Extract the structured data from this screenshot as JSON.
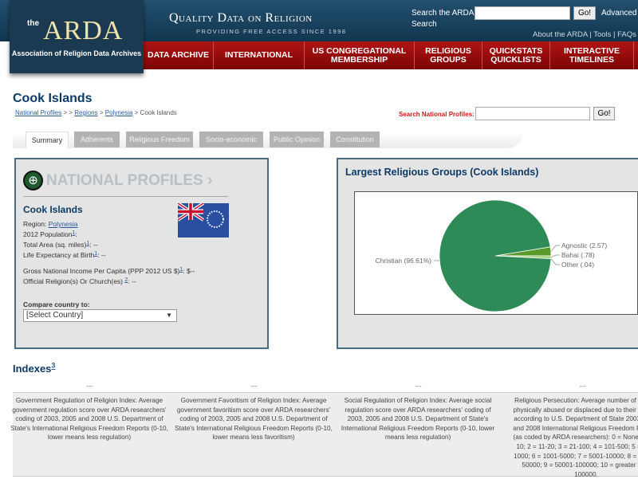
{
  "header": {
    "logo_the": "the",
    "logo_main": "ARDA",
    "logo_sub": "Association of Religion Data Archives",
    "tagline": "Quality Data on Religion",
    "tagline_sub": "PROVIDING FREE ACCESS SINCE 1998",
    "search_label": "Search the ARDA",
    "search_label2": "Search",
    "search_go": "Go!",
    "advanced": "Advanced",
    "top_links": "About the ARDA | Tools | FAQs"
  },
  "nav": [
    "DATA ARCHIVE",
    "INTERNATIONAL",
    "US CONGREGATIONAL MEMBERSHIP",
    "RELIGIOUS GROUPS",
    "QUICKSTATS QUICKLISTS",
    "INTERACTIVE TIMELINES"
  ],
  "page": {
    "title": "Cook Islands",
    "breadcrumb": [
      {
        "t": "National Profiles",
        "link": true
      },
      {
        "t": " > > ",
        "link": false
      },
      {
        "t": "Regions",
        "link": true
      },
      {
        "t": " > ",
        "link": false
      },
      {
        "t": "Polynesia",
        "link": true
      },
      {
        "t": " > Cook Islands",
        "link": false
      }
    ],
    "np_search_label": "Search National Profiles:",
    "np_go": "Go!"
  },
  "tabs": [
    "Summary",
    "Adherents",
    "Religious Freedom",
    "Socio-economic",
    "Public Opinion",
    "Constitution"
  ],
  "profile": {
    "heading": "NATIONAL PROFILES ›",
    "country": "Cook Islands",
    "region_label": "Region: ",
    "region": "Polynesia",
    "population": "2012 Population",
    "area": "Total Area (sq. miles)",
    "life": "Life Expectancy at Birth",
    "life_val": ": --",
    "area_val": ": --",
    "gni": "Gross National Income Per Capita (PPP 2012 US $)",
    "gni_val": ": $--",
    "official": "Official Religion(s) Or Church(es) ",
    "official_val": ": --",
    "fn1": "1",
    "fn2": "2",
    "compare_label": "Compare country to:",
    "compare_value": "[Select Country]"
  },
  "chart_data": {
    "type": "pie",
    "title": "Largest Religious Groups (Cook Islands)",
    "slices": [
      {
        "label": "Christian (96.61%)",
        "value": 96.61,
        "color": "#2e8b57"
      },
      {
        "label": "Agnostic (2.57)",
        "value": 2.57,
        "color": "#5a9a2a"
      },
      {
        "label": "Bahai (.78)",
        "value": 0.78,
        "color": "#9acd6a"
      },
      {
        "label": "Other (.04)",
        "value": 0.04,
        "color": "#c8e6a0"
      }
    ]
  },
  "indexes": {
    "title": "Indexes",
    "fn": "3",
    "values": [
      "---",
      "---",
      "---",
      "---"
    ],
    "descriptions": [
      "Government Regulation of Religion Index: Average government regulation score over ARDA researchers' coding of 2003, 2005 and 2008 U.S. Department of State's International Religious Freedom Reports (0-10, lower means less regulation)",
      "Government Favoritism of Religion Index: Average government favoritism score over ARDA researchers' coding of 2003, 2005 and 2008 U.S. Department of State's International Religious Freedom Reports (0-10, lower means less favoritism)",
      "Social Regulation of Religion Index: Average social regulation score over ARDA researchers' coding of 2003, 2005 and 2008 U.S. Department of State's International Religious Freedom Reports (0-10, lower means less regulation)",
      "Religious Persecution: Average number of people physically abused or displaced due to their religion according to U.S. Department of State 2003, 2005 and 2008 International Religious Freedom Reports (as coded by ARDA researchers): 0 = None; 1 = 1-10; 2 = 11-20; 3 = 21-100; 4 = 101-500; 5 = 501-1000; 6 = 1001-5000; 7 = 5001-10000; 8 = 10001-50000; 9 = 50001-100000; 10 = greater than 100000."
    ]
  }
}
